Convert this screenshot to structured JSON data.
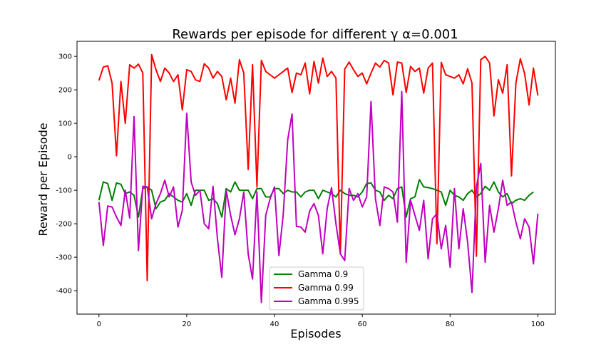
{
  "chart_data": {
    "type": "line",
    "title": "Rewards per episode for different γ α=0.001",
    "xlabel": "Episodes",
    "ylabel": "Reward per Episode",
    "xlim": [
      -5,
      104
    ],
    "ylim": [
      -470,
      345
    ],
    "xticks": [
      0,
      20,
      40,
      60,
      80,
      100
    ],
    "yticks": [
      -400,
      -300,
      -200,
      -100,
      0,
      100,
      200,
      300
    ],
    "grid": false,
    "legend_position": "bottom-center",
    "series": [
      {
        "name": "Gamma 0.9",
        "color": "#008000",
        "values": [
          -130,
          -75,
          -80,
          -130,
          -78,
          -82,
          -110,
          -105,
          -115,
          -180,
          -95,
          -90,
          -100,
          -155,
          -135,
          -130,
          -110,
          -120,
          -130,
          -135,
          -110,
          -145,
          -100,
          -100,
          -100,
          -130,
          -125,
          -140,
          -180,
          -95,
          -105,
          -75,
          -100,
          -100,
          -100,
          -125,
          -95,
          -95,
          -120,
          -120,
          -95,
          -95,
          -110,
          -100,
          -105,
          -105,
          -120,
          -105,
          -100,
          -100,
          -125,
          -100,
          -105,
          -110,
          -120,
          -100,
          -110,
          -115,
          -115,
          -120,
          -105,
          -80,
          -78,
          -100,
          -105,
          -130,
          -115,
          -125,
          -95,
          -90,
          -180,
          -125,
          -120,
          -68,
          -90,
          -92,
          -95,
          -100,
          -105,
          -145,
          -100,
          -115,
          -120,
          -130,
          -110,
          -100,
          -120,
          -110,
          -88,
          -100,
          -75,
          -105,
          -120,
          -110,
          -140,
          -130,
          -125,
          -130,
          -115,
          -105
        ]
      },
      {
        "name": "Gamma 0.99",
        "color": "#ff0000",
        "values": [
          228,
          268,
          272,
          220,
          3,
          225,
          100,
          275,
          265,
          277,
          250,
          -370,
          305,
          260,
          225,
          265,
          250,
          225,
          245,
          140,
          260,
          255,
          230,
          225,
          278,
          265,
          235,
          255,
          240,
          170,
          235,
          160,
          290,
          250,
          -38,
          275,
          -90,
          288,
          255,
          245,
          235,
          245,
          255,
          265,
          192,
          250,
          245,
          280,
          188,
          285,
          220,
          295,
          240,
          255,
          235,
          -290,
          262,
          283,
          260,
          240,
          250,
          218,
          250,
          280,
          268,
          288,
          280,
          185,
          283,
          280,
          192,
          270,
          255,
          265,
          190,
          265,
          280,
          -260,
          282,
          245,
          240,
          235,
          245,
          218,
          263,
          220,
          -297,
          290,
          300,
          280,
          122,
          230,
          190,
          275,
          -57,
          220,
          293,
          248,
          155,
          265,
          183
        ]
      },
      {
        "name": "Gamma 0.995",
        "color": "#c000c0",
        "values": [
          -135,
          -265,
          -147,
          -150,
          -180,
          -205,
          -100,
          -183,
          120,
          -280,
          -88,
          -90,
          -185,
          -140,
          -110,
          -70,
          -120,
          -90,
          -210,
          -160,
          130,
          -75,
          -115,
          -100,
          -200,
          -215,
          -88,
          -245,
          -360,
          -100,
          -175,
          -233,
          -185,
          -105,
          -290,
          -365,
          -105,
          -435,
          -175,
          -125,
          -90,
          -295,
          -172,
          50,
          128,
          -208,
          -210,
          -225,
          -162,
          -140,
          -175,
          -290,
          -155,
          -92,
          -200,
          -290,
          -310,
          -95,
          -130,
          -110,
          -150,
          -120,
          165,
          -125,
          -205,
          -90,
          -95,
          -105,
          -195,
          195,
          -315,
          -130,
          -175,
          -220,
          -130,
          -305,
          -185,
          -170,
          -275,
          -205,
          -330,
          -95,
          -275,
          -155,
          -255,
          -405,
          -90,
          -20,
          -315,
          -145,
          -225,
          -155,
          -70,
          -145,
          -135,
          -195,
          -245,
          -185,
          -210,
          -320,
          -170
        ]
      }
    ]
  }
}
